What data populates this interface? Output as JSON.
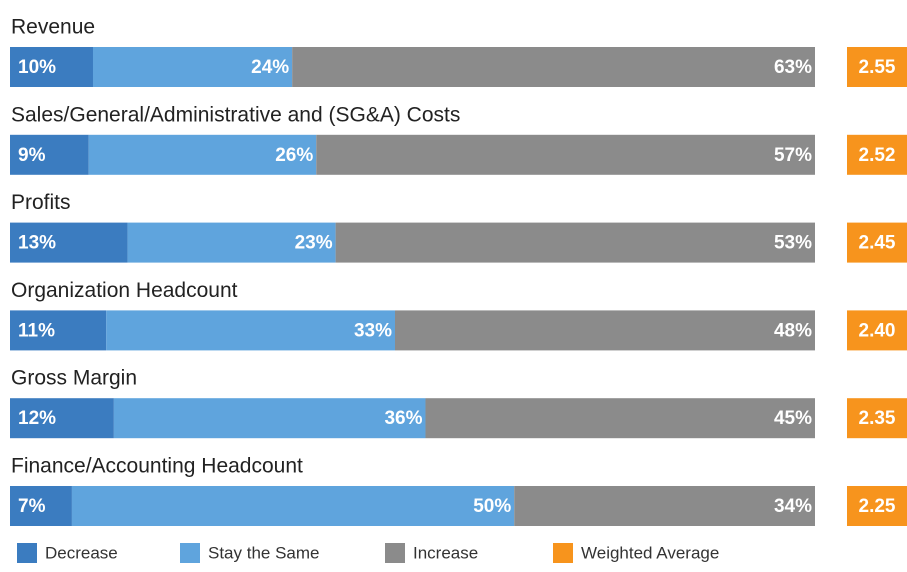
{
  "chart_data": {
    "type": "stacked-bar",
    "categories": [
      "Revenue",
      "Sales/General/Administrative and (SG&A) Costs",
      "Profits",
      "Organization Headcount",
      "Gross Margin",
      "Finance/Accounting Headcount"
    ],
    "series": [
      {
        "name": "Decrease",
        "color": "#3b7cc0",
        "values": [
          10,
          9,
          13,
          11,
          12,
          7
        ],
        "value_labels": [
          "10%",
          "9%",
          "13%",
          "11%",
          "12%",
          "7%"
        ]
      },
      {
        "name": "Stay the Same",
        "color": "#5fa4dd",
        "values": [
          24,
          26,
          23,
          33,
          36,
          50
        ],
        "value_labels": [
          "24%",
          "26%",
          "23%",
          "33%",
          "36%",
          "50%"
        ]
      },
      {
        "name": "Increase",
        "color": "#8b8b8b",
        "values": [
          63,
          57,
          53,
          48,
          45,
          34
        ],
        "value_labels": [
          "63%",
          "57%",
          "53%",
          "48%",
          "45%",
          "34%"
        ]
      }
    ],
    "weighted_average": {
      "name": "Weighted Average",
      "color": "#f7941d",
      "values": [
        2.55,
        2.52,
        2.45,
        2.4,
        2.35,
        2.25
      ],
      "value_labels": [
        "2.55",
        "2.52",
        "2.45",
        "2.40",
        "2.35",
        "2.25"
      ]
    },
    "legend": "bottom"
  }
}
